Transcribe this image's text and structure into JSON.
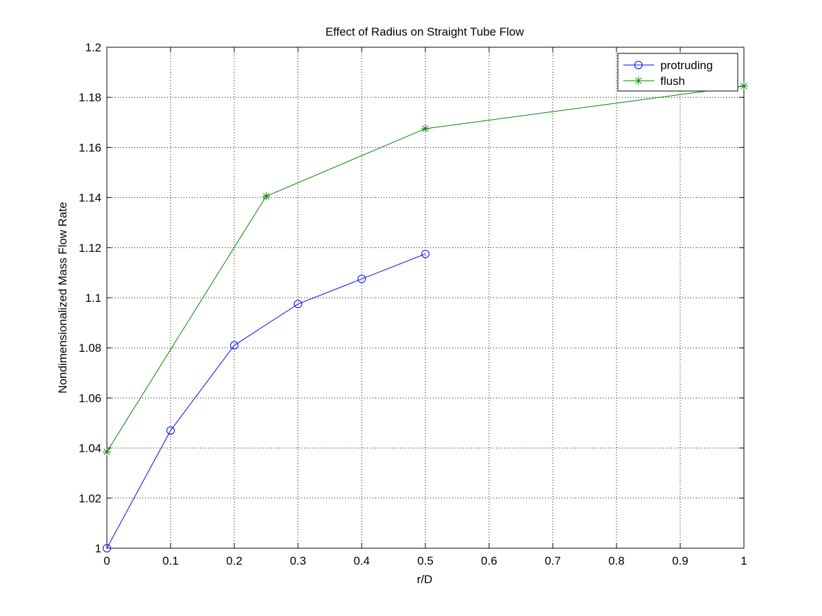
{
  "chart_data": {
    "type": "line",
    "title": "Effect of Radius on Straight Tube Flow",
    "xlabel": "r/D",
    "ylabel": "Nondimensionalized Mass Flow Rate",
    "xlim": [
      0,
      1
    ],
    "ylim": [
      1,
      1.2
    ],
    "xticks": [
      0,
      0.1,
      0.2,
      0.3,
      0.4,
      0.5,
      0.6,
      0.7,
      0.8,
      0.9,
      1
    ],
    "xtick_labels": [
      "0",
      "0.1",
      "0.2",
      "0.3",
      "0.4",
      "0.5",
      "0.6",
      "0.7",
      "0.8",
      "0.9",
      "1"
    ],
    "yticks": [
      1,
      1.02,
      1.04,
      1.06,
      1.08,
      1.1,
      1.12,
      1.14,
      1.16,
      1.18,
      1.2
    ],
    "ytick_labels": [
      "1",
      "1.02",
      "1.04",
      "1.06",
      "1.08",
      "1.1",
      "1.12",
      "1.14",
      "1.16",
      "1.18",
      "1.2"
    ],
    "grid": true,
    "legend_position": "top-right",
    "series": [
      {
        "name": "protruding",
        "color": "#0000ff",
        "marker": "circle",
        "x": [
          0,
          0.1,
          0.2,
          0.3,
          0.4,
          0.5
        ],
        "y": [
          1.0,
          1.047,
          1.081,
          1.0975,
          1.1075,
          1.1175
        ]
      },
      {
        "name": "flush",
        "color": "#008000",
        "marker": "asterisk",
        "x": [
          0,
          0.25,
          0.5,
          1.0
        ],
        "y": [
          1.0385,
          1.1405,
          1.1675,
          1.1845
        ]
      }
    ]
  }
}
